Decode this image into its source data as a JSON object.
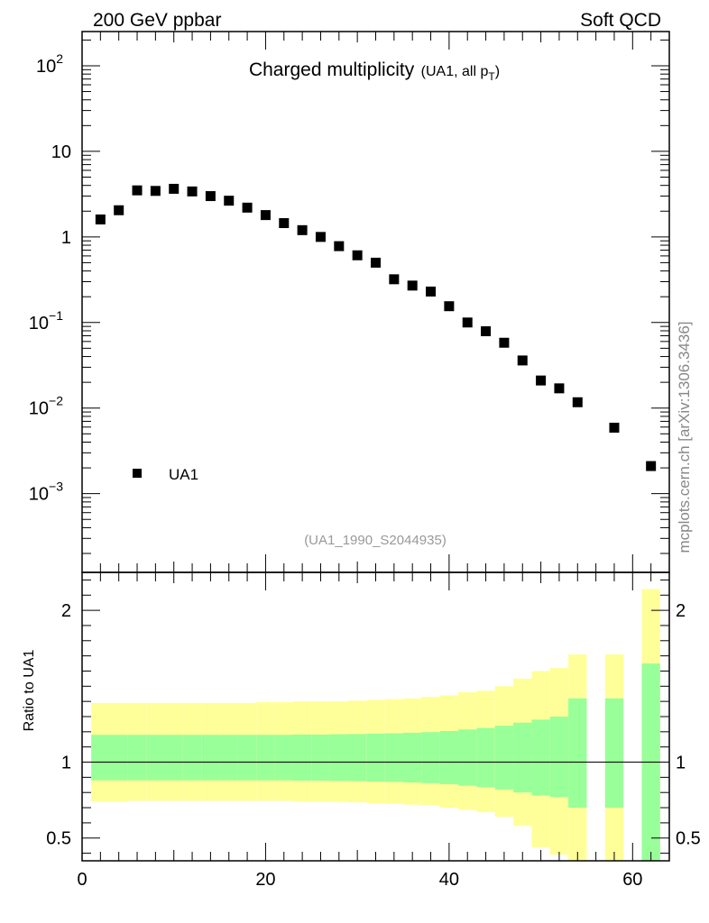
{
  "header": {
    "left": "200 GeV ppbar",
    "right": "Soft QCD"
  },
  "side_label": "mcplots.cern.ch [arXiv:1306.3436]",
  "chart_data": [
    {
      "type": "scatter",
      "role": "main",
      "title": "Charged multiplicity",
      "subtitle": "(UA1, all p",
      "subtitle_sub": "T",
      "subtitle_close": ")",
      "watermark": "(UA1_1990_S2044935)",
      "xlim": [
        0,
        64
      ],
      "ylim_log10": [
        -3.92,
        2.4
      ],
      "yscale": "log",
      "yticks": [
        {
          "base": "10",
          "exp": "2",
          "log": 2
        },
        {
          "base": "10",
          "exp": "",
          "log": 1
        },
        {
          "base": "1",
          "exp": "",
          "log": 0
        },
        {
          "base": "10",
          "exp": "−1",
          "log": -1
        },
        {
          "base": "10",
          "exp": "−2",
          "log": -2
        },
        {
          "base": "10",
          "exp": "−3",
          "log": -3
        }
      ],
      "legend": {
        "label": "UA1",
        "position": "bottom-left"
      },
      "series": [
        {
          "name": "UA1",
          "x": [
            2,
            4,
            6,
            8,
            10,
            12,
            14,
            16,
            18,
            20,
            22,
            24,
            26,
            28,
            30,
            32,
            34,
            36,
            38,
            40,
            42,
            44,
            46,
            48,
            50,
            52,
            54,
            58,
            62
          ],
          "y": [
            1.6,
            2.05,
            3.5,
            3.45,
            3.65,
            3.4,
            3.0,
            2.65,
            2.2,
            1.8,
            1.45,
            1.2,
            1.0,
            0.78,
            0.61,
            0.5,
            0.32,
            0.27,
            0.23,
            0.155,
            0.1,
            0.079,
            0.058,
            0.036,
            0.021,
            0.017,
            0.0117,
            0.0059,
            0.0021
          ]
        }
      ]
    },
    {
      "type": "area",
      "role": "ratio",
      "ylabel": "Ratio to UA1",
      "xlim": [
        0,
        64
      ],
      "ylim": [
        0.35,
        2.25
      ],
      "xticks": [
        0,
        20,
        40,
        60
      ],
      "xtick_labels": [
        "0",
        "20",
        "40",
        "60"
      ],
      "yticks": [
        0.5,
        1,
        2
      ],
      "ytick_labels": [
        "0.5",
        "1",
        "2"
      ],
      "reference_line": 1,
      "bins": [
        {
          "x0": 1,
          "x1": 3,
          "in_lo": 0.88,
          "in_hi": 1.18,
          "out_lo": 0.74,
          "out_hi": 1.39
        },
        {
          "x0": 3,
          "x1": 5,
          "in_lo": 0.88,
          "in_hi": 1.18,
          "out_lo": 0.74,
          "out_hi": 1.39
        },
        {
          "x0": 5,
          "x1": 7,
          "in_lo": 0.88,
          "in_hi": 1.18,
          "out_lo": 0.745,
          "out_hi": 1.39
        },
        {
          "x0": 7,
          "x1": 9,
          "in_lo": 0.88,
          "in_hi": 1.18,
          "out_lo": 0.745,
          "out_hi": 1.39
        },
        {
          "x0": 9,
          "x1": 11,
          "in_lo": 0.88,
          "in_hi": 1.18,
          "out_lo": 0.745,
          "out_hi": 1.39
        },
        {
          "x0": 11,
          "x1": 13,
          "in_lo": 0.88,
          "in_hi": 1.18,
          "out_lo": 0.745,
          "out_hi": 1.39
        },
        {
          "x0": 13,
          "x1": 15,
          "in_lo": 0.88,
          "in_hi": 1.18,
          "out_lo": 0.745,
          "out_hi": 1.39
        },
        {
          "x0": 15,
          "x1": 17,
          "in_lo": 0.88,
          "in_hi": 1.18,
          "out_lo": 0.745,
          "out_hi": 1.39
        },
        {
          "x0": 17,
          "x1": 19,
          "in_lo": 0.88,
          "in_hi": 1.18,
          "out_lo": 0.745,
          "out_hi": 1.39
        },
        {
          "x0": 19,
          "x1": 21,
          "in_lo": 0.88,
          "in_hi": 1.18,
          "out_lo": 0.745,
          "out_hi": 1.395
        },
        {
          "x0": 21,
          "x1": 23,
          "in_lo": 0.88,
          "in_hi": 1.18,
          "out_lo": 0.745,
          "out_hi": 1.395
        },
        {
          "x0": 23,
          "x1": 25,
          "in_lo": 0.878,
          "in_hi": 1.182,
          "out_lo": 0.74,
          "out_hi": 1.4
        },
        {
          "x0": 25,
          "x1": 27,
          "in_lo": 0.878,
          "in_hi": 1.182,
          "out_lo": 0.74,
          "out_hi": 1.4
        },
        {
          "x0": 27,
          "x1": 29,
          "in_lo": 0.876,
          "in_hi": 1.184,
          "out_lo": 0.738,
          "out_hi": 1.4
        },
        {
          "x0": 29,
          "x1": 31,
          "in_lo": 0.875,
          "in_hi": 1.185,
          "out_lo": 0.735,
          "out_hi": 1.405
        },
        {
          "x0": 31,
          "x1": 33,
          "in_lo": 0.872,
          "in_hi": 1.188,
          "out_lo": 0.73,
          "out_hi": 1.41
        },
        {
          "x0": 33,
          "x1": 35,
          "in_lo": 0.87,
          "in_hi": 1.19,
          "out_lo": 0.725,
          "out_hi": 1.415
        },
        {
          "x0": 35,
          "x1": 37,
          "in_lo": 0.866,
          "in_hi": 1.194,
          "out_lo": 0.72,
          "out_hi": 1.42
        },
        {
          "x0": 37,
          "x1": 39,
          "in_lo": 0.862,
          "in_hi": 1.198,
          "out_lo": 0.715,
          "out_hi": 1.43
        },
        {
          "x0": 39,
          "x1": 41,
          "in_lo": 0.855,
          "in_hi": 1.205,
          "out_lo": 0.7,
          "out_hi": 1.44
        },
        {
          "x0": 41,
          "x1": 43,
          "in_lo": 0.845,
          "in_hi": 1.215,
          "out_lo": 0.685,
          "out_hi": 1.46
        },
        {
          "x0": 43,
          "x1": 45,
          "in_lo": 0.835,
          "in_hi": 1.225,
          "out_lo": 0.67,
          "out_hi": 1.47
        },
        {
          "x0": 45,
          "x1": 47,
          "in_lo": 0.82,
          "in_hi": 1.24,
          "out_lo": 0.64,
          "out_hi": 1.5
        },
        {
          "x0": 47,
          "x1": 49,
          "in_lo": 0.8,
          "in_hi": 1.26,
          "out_lo": 0.58,
          "out_hi": 1.55
        },
        {
          "x0": 49,
          "x1": 51,
          "in_lo": 0.78,
          "in_hi": 1.28,
          "out_lo": 0.44,
          "out_hi": 1.6
        },
        {
          "x0": 51,
          "x1": 53,
          "in_lo": 0.77,
          "in_hi": 1.3,
          "out_lo": 0.39,
          "out_hi": 1.62
        },
        {
          "x0": 53,
          "x1": 55,
          "in_lo": 0.7,
          "in_hi": 1.42,
          "out_lo": 0.35,
          "out_hi": 1.71
        },
        {
          "x0": 57,
          "x1": 59,
          "in_lo": 0.7,
          "in_hi": 1.42,
          "out_lo": 0.35,
          "out_hi": 1.71
        },
        {
          "x0": 61,
          "x1": 63,
          "in_lo": 0.35,
          "in_hi": 1.65,
          "out_lo": 0.35,
          "out_hi": 2.14
        }
      ]
    }
  ],
  "colors": {
    "inner_band": "#99ff99",
    "outer_band": "#ffff99",
    "marker": "#000000",
    "watermark": "#999999",
    "axis": "#000000"
  }
}
